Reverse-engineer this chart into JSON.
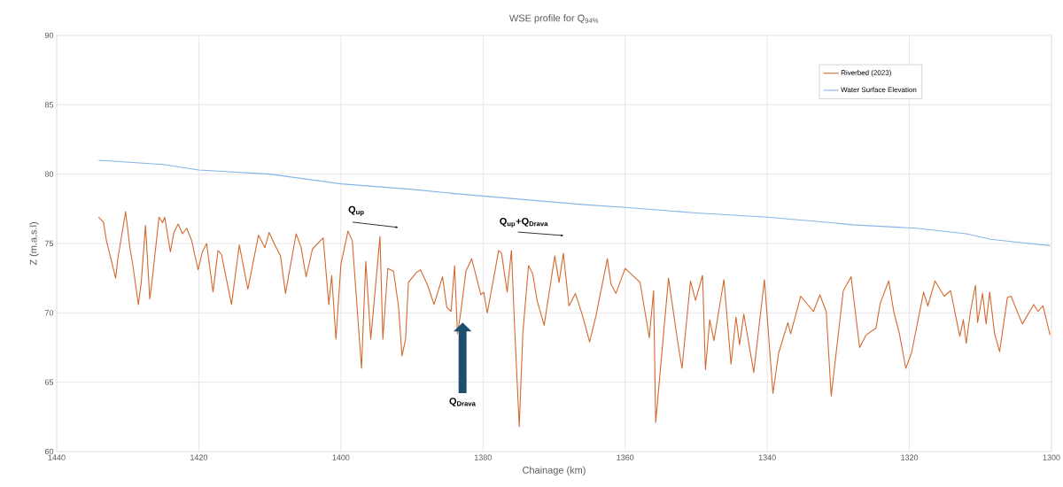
{
  "chart_data": {
    "type": "line",
    "title": "WSE profile for Q$_{94%}$",
    "xlabel": "Chainage (km)",
    "ylabel": "Z (m.a.s.l)",
    "xlim": [
      1440,
      1300
    ],
    "xticks": [
      1440,
      1420,
      1400,
      1380,
      1360,
      1340,
      1320,
      1300
    ],
    "ylim": [
      60,
      90
    ],
    "yticks": [
      60,
      65,
      70,
      75,
      80,
      85,
      90
    ],
    "grid": true,
    "legend": "top right",
    "marker": "none",
    "line_style": "solid",
    "annotations": [
      "Q$_{up}$",
      "Q$_{up}$+Q$_{Drava}$",
      "Q$_{Drava}$"
    ],
    "series": [
      {
        "name": "Riverbed (2023)",
        "color": "#d2692e",
        "x": [
          1434.1,
          1433.4,
          1433.0,
          1431.7,
          1431.4,
          1430.3,
          1429.7,
          1429.3,
          1428.5,
          1428.1,
          1427.5,
          1426.9,
          1426.6,
          1425.6,
          1425.1,
          1424.8,
          1424.0,
          1423.5,
          1422.9,
          1422.3,
          1421.7,
          1421.0,
          1420.1,
          1419.5,
          1418.9,
          1418.0,
          1417.3,
          1416.8,
          1415.4,
          1414.3,
          1413.1,
          1411.6,
          1410.7,
          1410.1,
          1409.4,
          1408.5,
          1407.8,
          1406.3,
          1405.6,
          1404.9,
          1404.0,
          1402.5,
          1401.7,
          1401.3,
          1400.7,
          1400.0,
          1399.0,
          1398.4,
          1397.1,
          1396.5,
          1395.8,
          1394.5,
          1394.1,
          1393.4,
          1392.6,
          1391.9,
          1391.4,
          1390.9,
          1390.5,
          1389.4,
          1388.8,
          1387.8,
          1386.9,
          1385.7,
          1385.1,
          1384.5,
          1384.0,
          1383.6,
          1383.2,
          1382.4,
          1381.6,
          1380.3,
          1379.9,
          1379.4,
          1377.8,
          1377.4,
          1376.6,
          1376.0,
          1375.5,
          1374.9,
          1374.4,
          1373.6,
          1373.0,
          1372.4,
          1371.4,
          1369.9,
          1369.3,
          1368.7,
          1367.9,
          1367.0,
          1366.0,
          1365.0,
          1364.1,
          1362.5,
          1362.0,
          1361.3,
          1360.0,
          1357.9,
          1356.6,
          1356.0,
          1355.7,
          1353.9,
          1352.6,
          1352.0,
          1350.8,
          1350.1,
          1349.1,
          1348.7,
          1348.1,
          1347.5,
          1346.1,
          1345.1,
          1344.4,
          1343.9,
          1343.3,
          1341.9,
          1340.4,
          1339.8,
          1339.2,
          1338.4,
          1337.1,
          1336.7,
          1335.3,
          1333.5,
          1332.6,
          1331.7,
          1331.0,
          1329.3,
          1328.2,
          1327.0,
          1326.1,
          1324.7,
          1324.1,
          1322.9,
          1322.2,
          1321.4,
          1320.5,
          1319.7,
          1318.0,
          1317.4,
          1316.4,
          1315.1,
          1314.2,
          1312.9,
          1312.4,
          1312.0,
          1311.4,
          1310.7,
          1310.4,
          1309.7,
          1309.2,
          1308.7,
          1308.0,
          1307.3,
          1306.2,
          1305.7,
          1304.1,
          1302.5,
          1301.9,
          1301.2,
          1300.2
        ],
        "values": [
          76.9,
          76.5,
          75.2,
          72.5,
          73.9,
          77.3,
          74.7,
          73.5,
          70.6,
          72.2,
          76.3,
          71.0,
          72.2,
          76.9,
          76.5,
          76.9,
          74.4,
          75.8,
          76.4,
          75.7,
          76.1,
          75.2,
          73.1,
          74.4,
          75.0,
          71.5,
          74.5,
          74.2,
          70.6,
          74.9,
          71.7,
          75.6,
          74.7,
          75.8,
          75.0,
          74.1,
          71.4,
          75.7,
          74.7,
          72.6,
          74.6,
          75.4,
          70.6,
          72.7,
          68.1,
          73.5,
          75.9,
          75.2,
          66.0,
          73.7,
          68.1,
          75.5,
          68.1,
          73.2,
          73.0,
          70.5,
          66.9,
          68.1,
          72.2,
          72.9,
          73.1,
          72.0,
          70.6,
          72.6,
          70.4,
          70.1,
          73.4,
          68.5,
          69.8,
          73.0,
          73.9,
          71.3,
          71.5,
          70.0,
          74.5,
          74.3,
          71.5,
          74.5,
          68.3,
          61.8,
          68.5,
          73.4,
          72.8,
          70.9,
          69.1,
          74.1,
          72.2,
          74.3,
          70.5,
          71.4,
          69.8,
          67.9,
          69.8,
          73.9,
          72.1,
          71.4,
          73.2,
          72.2,
          68.2,
          71.6,
          62.1,
          72.5,
          67.9,
          66.0,
          72.3,
          70.9,
          72.7,
          65.9,
          69.5,
          68.0,
          72.4,
          66.3,
          69.7,
          67.7,
          69.9,
          65.7,
          72.4,
          68.3,
          64.2,
          67.1,
          69.3,
          68.5,
          71.2,
          70.1,
          71.3,
          70.1,
          64.0,
          71.6,
          72.6,
          67.5,
          68.4,
          68.9,
          70.7,
          72.3,
          70.1,
          68.5,
          66.0,
          67.1,
          71.5,
          70.5,
          72.3,
          71.2,
          71.6,
          68.3,
          69.5,
          67.8,
          70.1,
          72.0,
          69.3,
          71.4,
          69.2,
          71.5,
          68.5,
          67.2,
          71.1,
          71.2,
          69.2,
          70.6,
          70.1,
          70.5,
          68.4
        ]
      },
      {
        "name": "Water Surface Elevation",
        "color": "#85b5e6",
        "x": [
          1434.1,
          1425,
          1420,
          1410,
          1400,
          1390,
          1384,
          1375,
          1365.8,
          1360,
          1350,
          1340,
          1331,
          1328,
          1319,
          1312,
          1308.5,
          1304.3,
          1300.2
        ],
        "values": [
          81.0,
          80.7,
          80.3,
          80.0,
          79.3,
          78.9,
          78.6,
          78.2,
          77.8,
          77.6,
          77.2,
          76.9,
          76.5,
          76.35,
          76.1,
          75.7,
          75.3,
          75.06,
          74.85
        ]
      }
    ]
  }
}
